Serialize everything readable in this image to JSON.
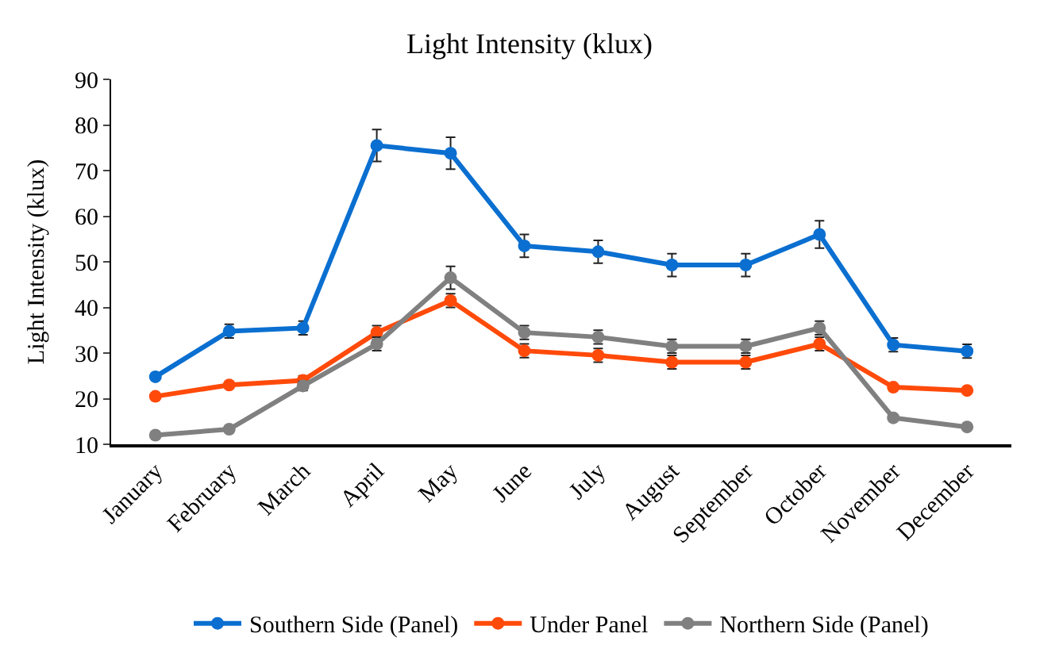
{
  "chart_data": {
    "type": "line",
    "title": "Light Intensity (klux)",
    "ylabel": "Light Intensity (klux)",
    "categories": [
      "January",
      "February",
      "March",
      "April",
      "May",
      "June",
      "July",
      "August",
      "September",
      "October",
      "November",
      "December"
    ],
    "series": [
      {
        "name": "Southern Side (Panel)",
        "color": "#0a6fd0",
        "values": [
          24.8,
          34.8,
          35.5,
          75.5,
          73.8,
          53.5,
          52.2,
          49.3,
          49.3,
          56,
          31.8,
          30.4
        ],
        "errors": [
          null,
          1.5,
          1.5,
          3.5,
          3.5,
          2.5,
          2.5,
          2.5,
          2.5,
          3,
          1.5,
          1.5
        ]
      },
      {
        "name": "Under Panel",
        "color": "#ff4a0a",
        "values": [
          20.5,
          23,
          24,
          34.5,
          41.5,
          30.5,
          29.5,
          28,
          28,
          32,
          22.5,
          21.8
        ],
        "errors": [
          null,
          null,
          1,
          1.5,
          1.5,
          1.5,
          1.5,
          1.5,
          1.5,
          1.5,
          null,
          null
        ]
      },
      {
        "name": "Northern Side (Panel)",
        "color": "#808080",
        "values": [
          12,
          13.3,
          22.8,
          32,
          46.5,
          34.5,
          33.5,
          31.5,
          31.5,
          35.5,
          15.8,
          13.8
        ],
        "errors": [
          0.5,
          0.5,
          1,
          1.5,
          2.5,
          1.5,
          1.5,
          1.5,
          1.5,
          1.5,
          0.5,
          0.5
        ]
      }
    ],
    "ylim": [
      10,
      90
    ],
    "yticks": [
      10,
      20,
      30,
      40,
      50,
      60,
      70,
      80,
      90
    ],
    "legend": "bottom",
    "marker": "circle",
    "line_style": "solid"
  }
}
